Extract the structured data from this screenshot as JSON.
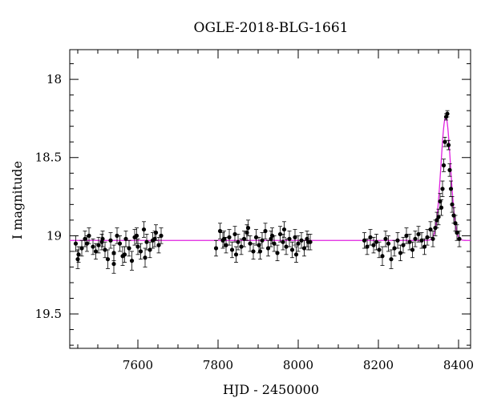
{
  "chart_data": {
    "type": "scatter",
    "title": "OGLE-2018-BLG-1661",
    "xlabel": "HJD - 2450000",
    "ylabel": "I magnitude",
    "xlim": [
      7430,
      8430
    ],
    "ylim": [
      19.72,
      17.81
    ],
    "y_inverted": true,
    "x_ticks": [
      7600,
      7800,
      8000,
      8200,
      8400
    ],
    "y_ticks": [
      18,
      18.5,
      19,
      19.5
    ],
    "x_tick_labels": [
      "7600",
      "7800",
      "8000",
      "8200",
      "8400"
    ],
    "y_tick_labels": [
      "18",
      "18.5",
      "19",
      "19.5"
    ],
    "grid": false,
    "colors": {
      "points": "#000000",
      "model": "#e020e0",
      "axes": "#000000"
    },
    "series": [
      {
        "kind": "data",
        "x": [
          7445,
          7452,
          7460,
          7468,
          7478,
          7488,
          7495,
          7502,
          7510,
          7518,
          7525,
          7532,
          7540,
          7548,
          7555,
          7562,
          7570,
          7578,
          7585,
          7592,
          7600,
          7607,
          7615,
          7622,
          7630,
          7637,
          7645,
          7652,
          7658,
          7450,
          7473,
          7512,
          7540,
          7567,
          7597,
          7618,
          7642,
          7795,
          7805,
          7812,
          7820,
          7828,
          7835,
          7842,
          7850,
          7858,
          7865,
          7872,
          7880,
          7888,
          7895,
          7902,
          7910,
          7918,
          7925,
          7932,
          7940,
          7948,
          7955,
          7962,
          7970,
          7978,
          7985,
          7992,
          8000,
          8008,
          8015,
          8022,
          8030,
          7815,
          7845,
          7875,
          7905,
          7935,
          7965,
          7995,
          8025,
          8165,
          8172,
          8180,
          8188,
          8195,
          8202,
          8210,
          8218,
          8225,
          8232,
          8240,
          8248,
          8255,
          8262,
          8270,
          8278,
          8285,
          8292,
          8300,
          8308,
          8315,
          8322,
          8330,
          8336,
          8342,
          8346,
          8350,
          8354,
          8357,
          8360,
          8363,
          8366,
          8369,
          8372,
          8375,
          8378,
          8381,
          8384,
          8388,
          8392,
          8396,
          8402
        ],
        "y": [
          19.05,
          19.12,
          19.08,
          19.02,
          19.0,
          19.07,
          19.1,
          19.06,
          19.04,
          19.09,
          19.15,
          19.03,
          19.11,
          19.0,
          19.05,
          19.13,
          19.02,
          19.08,
          19.16,
          19.01,
          19.07,
          19.1,
          18.96,
          19.04,
          19.09,
          19.03,
          18.98,
          19.06,
          19.0,
          19.15,
          19.05,
          19.02,
          19.18,
          19.12,
          19.0,
          19.14,
          19.02,
          19.08,
          18.97,
          19.03,
          19.06,
          19.01,
          19.09,
          18.99,
          19.04,
          19.07,
          19.02,
          18.98,
          19.05,
          19.1,
          19.01,
          19.06,
          19.03,
          18.97,
          19.08,
          19.02,
          19.05,
          19.11,
          18.99,
          19.04,
          19.07,
          19.02,
          19.09,
          19.01,
          19.05,
          19.03,
          19.08,
          19.02,
          19.04,
          19.02,
          19.12,
          18.95,
          19.1,
          19.0,
          18.96,
          19.12,
          19.04,
          19.03,
          19.07,
          19.01,
          19.06,
          19.04,
          19.09,
          19.13,
          19.02,
          19.05,
          19.15,
          19.08,
          19.03,
          19.11,
          19.06,
          19.0,
          19.04,
          19.09,
          19.02,
          18.99,
          19.03,
          19.07,
          19.01,
          18.96,
          19.02,
          18.95,
          18.9,
          18.88,
          18.78,
          18.82,
          18.7,
          18.55,
          18.4,
          18.24,
          18.22,
          18.42,
          18.58,
          18.7,
          18.8,
          18.87,
          18.92,
          18.98,
          19.02
        ],
        "yerr": [
          0.05,
          0.05,
          0.05,
          0.05,
          0.05,
          0.05,
          0.05,
          0.05,
          0.05,
          0.05,
          0.06,
          0.05,
          0.05,
          0.05,
          0.05,
          0.06,
          0.05,
          0.05,
          0.06,
          0.05,
          0.05,
          0.05,
          0.05,
          0.05,
          0.05,
          0.05,
          0.05,
          0.05,
          0.05,
          0.06,
          0.05,
          0.05,
          0.06,
          0.05,
          0.05,
          0.06,
          0.05,
          0.05,
          0.05,
          0.05,
          0.05,
          0.05,
          0.05,
          0.05,
          0.05,
          0.05,
          0.05,
          0.05,
          0.05,
          0.05,
          0.05,
          0.05,
          0.05,
          0.05,
          0.05,
          0.05,
          0.05,
          0.05,
          0.05,
          0.05,
          0.05,
          0.05,
          0.05,
          0.05,
          0.05,
          0.05,
          0.05,
          0.05,
          0.05,
          0.05,
          0.05,
          0.05,
          0.05,
          0.05,
          0.05,
          0.05,
          0.05,
          0.05,
          0.05,
          0.05,
          0.05,
          0.05,
          0.05,
          0.06,
          0.05,
          0.05,
          0.06,
          0.05,
          0.05,
          0.05,
          0.05,
          0.05,
          0.05,
          0.05,
          0.05,
          0.05,
          0.05,
          0.05,
          0.05,
          0.05,
          0.05,
          0.05,
          0.05,
          0.05,
          0.05,
          0.05,
          0.05,
          0.04,
          0.03,
          0.02,
          0.02,
          0.03,
          0.04,
          0.05,
          0.05,
          0.05,
          0.05,
          0.05,
          0.05
        ]
      },
      {
        "kind": "model",
        "baseline": 19.03,
        "peak_x": 8368,
        "peak_y": 18.24,
        "width": 12
      }
    ]
  }
}
